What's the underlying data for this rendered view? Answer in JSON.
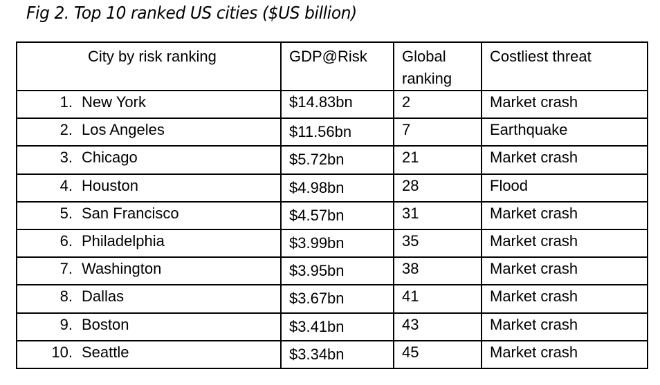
{
  "title": "Fig 2. Top 10 ranked US cities ($US billion)",
  "table": {
    "headers": [
      "City by risk ranking",
      "GDP@Risk",
      "Global ranking",
      "Costliest threat"
    ],
    "header_global_lines": [
      "Global",
      "ranking"
    ],
    "rows": [
      {
        "rank": "1.",
        "city": "New York",
        "gdp": "$14.83bn",
        "global": "2",
        "threat": "Market crash"
      },
      {
        "rank": "2.",
        "city": "Los Angeles",
        "gdp": "$11.56bn",
        "global": "7",
        "threat": "Earthquake"
      },
      {
        "rank": "3.",
        "city": "Chicago",
        "gdp": "$5.72bn",
        "global": "21",
        "threat": "Market crash"
      },
      {
        "rank": "4.",
        "city": "Houston",
        "gdp": "$4.98bn",
        "global": "28",
        "threat": "Flood"
      },
      {
        "rank": "5.",
        "city": "San Francisco",
        "gdp": "$4.57bn",
        "global": "31",
        "threat": "Market crash"
      },
      {
        "rank": "6.",
        "city": "Philadelphia",
        "gdp": "$3.99bn",
        "global": "35",
        "threat": "Market crash"
      },
      {
        "rank": "7.",
        "city": "Washington",
        "gdp": "$3.95bn",
        "global": "38",
        "threat": "Market crash"
      },
      {
        "rank": "8.",
        "city": "Dallas",
        "gdp": "$3.67bn",
        "global": "41",
        "threat": "Market crash"
      },
      {
        "rank": "9.",
        "city": "Boston",
        "gdp": "$3.41bn",
        "global": "43",
        "threat": "Market crash"
      },
      {
        "rank": "10.",
        "city": "Seattle",
        "gdp": "$3.34bn",
        "global": "45",
        "threat": "Market crash"
      }
    ]
  }
}
